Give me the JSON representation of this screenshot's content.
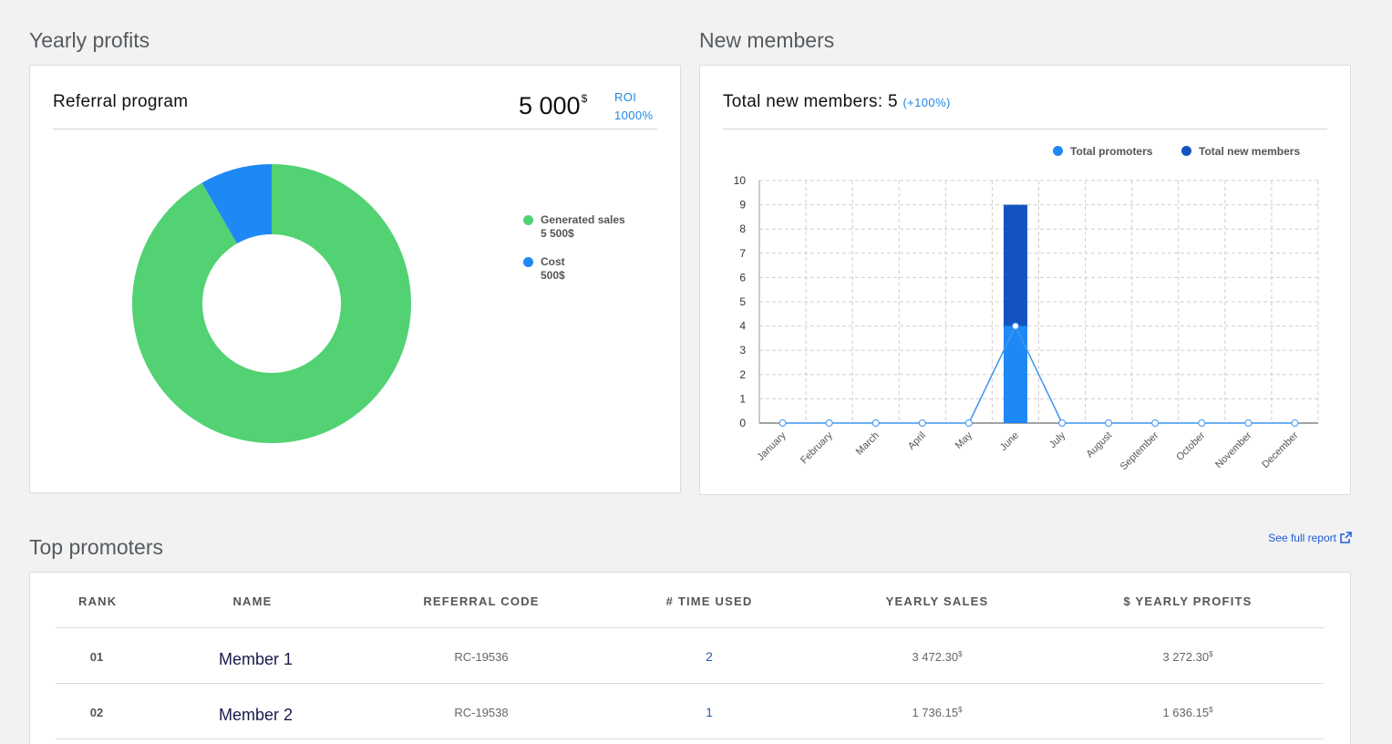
{
  "profits": {
    "section_title": "Yearly profits",
    "card_title": "Referral program",
    "amount": "5 000",
    "currency": "$",
    "roi_label": "ROI",
    "roi_value": "1000%",
    "legend": [
      {
        "label": "Generated sales",
        "value": "5 500$",
        "color": "#52d273"
      },
      {
        "label": "Cost",
        "value": "500$",
        "color": "#1e88f5"
      }
    ]
  },
  "members": {
    "section_title": "New members",
    "card_title": "Total new members: 5",
    "change": "(+100%)",
    "legend": [
      {
        "label": "Total promoters",
        "color": "#1e88f5"
      },
      {
        "label": "Total new members",
        "color": "#1253c0"
      }
    ]
  },
  "chart_data": [
    {
      "type": "pie",
      "categories": [
        "Generated sales",
        "Cost"
      ],
      "values": [
        5500,
        500
      ],
      "colors": [
        "#52d273",
        "#1e88f5"
      ],
      "donut": true
    },
    {
      "type": "bar",
      "categories": [
        "January",
        "February",
        "March",
        "April",
        "May",
        "June",
        "July",
        "August",
        "September",
        "October",
        "November",
        "December"
      ],
      "series": [
        {
          "name": "Total promoters",
          "kind": "bar+line",
          "values": [
            0,
            0,
            0,
            0,
            0,
            4,
            0,
            0,
            0,
            0,
            0,
            0
          ],
          "color": "#1e88f5"
        },
        {
          "name": "Total new members",
          "kind": "bar-stacked",
          "values": [
            0,
            0,
            0,
            0,
            0,
            5,
            0,
            0,
            0,
            0,
            0,
            0
          ],
          "color": "#1253c0"
        }
      ],
      "ylim": [
        0,
        10
      ],
      "yticks": [
        "0",
        "1",
        "2",
        "3",
        "4",
        "5",
        "6",
        "7",
        "8",
        "9",
        "10"
      ],
      "grid": true,
      "legend": "top-right"
    }
  ],
  "promoters": {
    "section_title": "Top promoters",
    "see_report": "See full report",
    "columns": [
      "RANK",
      "NAME",
      "REFERRAL CODE",
      "# TIME USED",
      "YEARLY SALES",
      "$ YEARLY PROFITS"
    ],
    "rows": [
      {
        "rank": "01",
        "name": "Member 1",
        "code": "RC-19536",
        "used": "2",
        "sales": "3 472.30",
        "profits": "3 272.30"
      },
      {
        "rank": "02",
        "name": "Member 2",
        "code": "RC-19538",
        "used": "1",
        "sales": "1 736.15",
        "profits": "1 636.15"
      }
    ],
    "currency": "$"
  }
}
